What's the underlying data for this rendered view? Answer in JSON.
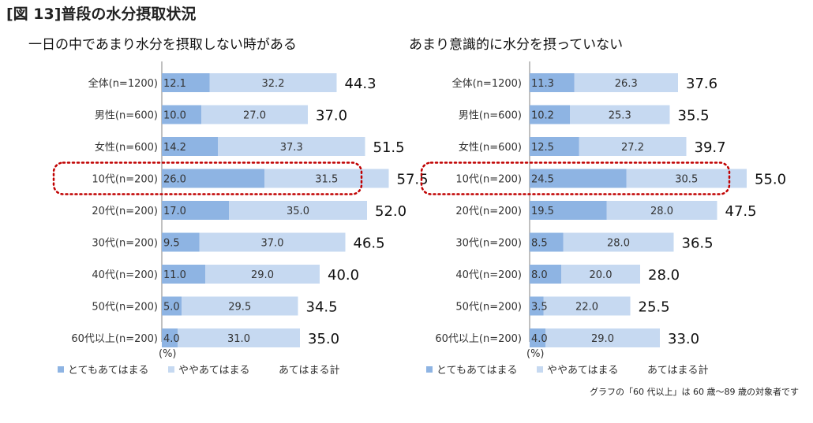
{
  "figure_title": "[図 13]普段の水分摂取状況",
  "note": "グラフの「60 代以上」は 60 歳～89 歳の対象者です",
  "colors": {
    "strong": "#8eb4e3",
    "moderate": "#c6d9f1",
    "highlight": "#c00000",
    "axis": "#808080"
  },
  "chart_data": [
    {
      "type": "bar",
      "stacked": true,
      "orientation": "horizontal",
      "title": "一日の中であまり水分を摂取しない時がある",
      "categories": [
        "全体(n=1200)",
        "男性(n=600)",
        "女性(n=600)",
        "10代(n=200)",
        "20代(n=200)",
        "30代(n=200)",
        "40代(n=200)",
        "50代(n=200)",
        "60代以上(n=200)"
      ],
      "series": [
        {
          "name": "とてもあてはまる",
          "values": [
            "12.1",
            "10.0",
            "14.2",
            "26.0",
            "17.0",
            "9.5",
            "11.0",
            "5.0",
            "4.0"
          ]
        },
        {
          "name": "ややあてはまる",
          "values": [
            "32.2",
            "27.0",
            "37.3",
            "31.5",
            "35.0",
            "37.0",
            "29.0",
            "29.5",
            "31.0"
          ]
        }
      ],
      "totals": {
        "name": "あてはまる計",
        "values": [
          "44.3",
          "37.0",
          "51.5",
          "57.5",
          "52.0",
          "46.5",
          "40.0",
          "34.5",
          "35.0"
        ]
      },
      "unit": "(%)",
      "highlighted_category": "10代(n=200)",
      "xlim": [
        0,
        100
      ]
    },
    {
      "type": "bar",
      "stacked": true,
      "orientation": "horizontal",
      "title": "あまり意識的に水分を摂っていない",
      "categories": [
        "全体(n=1200)",
        "男性(n=600)",
        "女性(n=600)",
        "10代(n=200)",
        "20代(n=200)",
        "30代(n=200)",
        "40代(n=200)",
        "50代(n=200)",
        "60代以上(n=200)"
      ],
      "series": [
        {
          "name": "とてもあてはまる",
          "values": [
            "11.3",
            "10.2",
            "12.5",
            "24.5",
            "19.5",
            "8.5",
            "8.0",
            "3.5",
            "4.0"
          ]
        },
        {
          "name": "ややあてはまる",
          "values": [
            "26.3",
            "25.3",
            "27.2",
            "30.5",
            "28.0",
            "28.0",
            "20.0",
            "22.0",
            "29.0"
          ]
        }
      ],
      "totals": {
        "name": "あてはまる計",
        "values": [
          "37.6",
          "35.5",
          "39.7",
          "55.0",
          "47.5",
          "36.5",
          "28.0",
          "25.5",
          "33.0"
        ]
      },
      "unit": "(%)",
      "highlighted_category": "10代(n=200)",
      "xlim": [
        0,
        100
      ]
    }
  ]
}
